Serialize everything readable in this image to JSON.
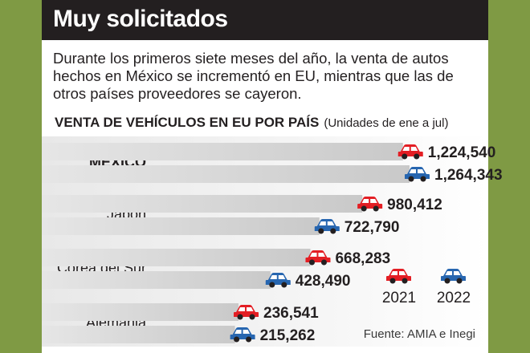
{
  "header": {
    "title": "Muy solicitados"
  },
  "intro": "Durante los primeros siete meses del año, la venta de autos hechos en México se incrementó en EU, mientras que las de otros países proveedores se cayeron.",
  "chart_title": "VENTA DE VEHÍCULOS EN EU POR PAÍS",
  "chart_subtitle": "(Unidades de ene a jul)",
  "source": "Fuente: AMIA e Inegi",
  "colors": {
    "2021": "#e31e24",
    "2022": "#2766b0",
    "bar": "#d9d9d9",
    "header": "#231f20",
    "frame": "#7f9a44"
  },
  "chart_data": {
    "type": "bar",
    "orientation": "horizontal",
    "categories": [
      "MÉXICO",
      "Japón",
      "Corea del Sur",
      "Alemania"
    ],
    "series": [
      {
        "name": "2021",
        "values": [
          1224540,
          980412,
          668283,
          236541
        ],
        "labels": [
          "1,224,540",
          "980,412",
          "668,283",
          "236,541"
        ]
      },
      {
        "name": "2022",
        "values": [
          1264343,
          722790,
          428490,
          215262
        ],
        "labels": [
          "1,264,343",
          "722,790",
          "428,490",
          "215,262"
        ]
      }
    ],
    "highlight_category": "MÉXICO",
    "legend": [
      "2021",
      "2022"
    ],
    "legend_position": "bottom-right"
  }
}
